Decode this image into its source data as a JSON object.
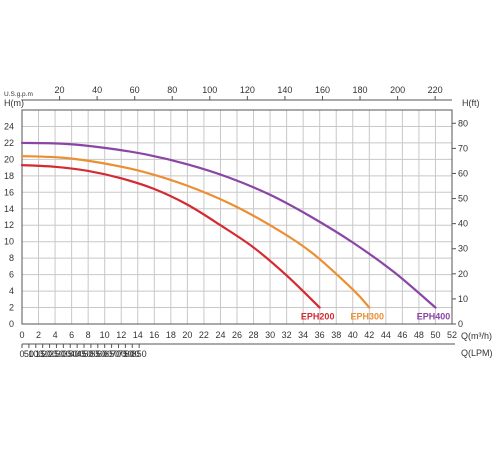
{
  "chart_data": {
    "type": "line",
    "axes": {
      "left": {
        "label": "H(m)",
        "ticks": [
          "0",
          "2",
          "4",
          "6",
          "8",
          "10",
          "12",
          "14",
          "16",
          "18",
          "20",
          "22",
          "24"
        ],
        "range": [
          0,
          26
        ]
      },
      "right": {
        "label": "H(ft)",
        "ticks": [
          "0",
          "10",
          "20",
          "30",
          "40",
          "50",
          "60",
          "70",
          "80"
        ],
        "range": [
          0,
          85.3
        ]
      },
      "bottom": {
        "label": "Q(m³/h)",
        "ticks": [
          "0",
          "2",
          "4",
          "6",
          "8",
          "10",
          "12",
          "14",
          "16",
          "18",
          "20",
          "22",
          "24",
          "26",
          "28",
          "30",
          "32",
          "34",
          "36",
          "38",
          "40",
          "42",
          "44",
          "46",
          "48",
          "50",
          "52"
        ],
        "range": [
          0,
          52
        ]
      },
      "bottom2": {
        "label": "Q(LPM)",
        "ticks": [
          "0",
          "50",
          "100",
          "150",
          "200",
          "250",
          "300",
          "350",
          "400",
          "450",
          "500",
          "550",
          "600",
          "650",
          "700",
          "750",
          "800",
          "850"
        ]
      },
      "top": {
        "label": "U.S.g.p.m",
        "ticks": [
          "20",
          "40",
          "60",
          "80",
          "100",
          "120",
          "140",
          "160",
          "180",
          "200",
          "220"
        ]
      }
    },
    "grid": true,
    "series": [
      {
        "name": "EPH200",
        "color": "#d42a32",
        "x": [
          0,
          4,
          8,
          12,
          16,
          20,
          24,
          28,
          32,
          36
        ],
        "y": [
          19.3,
          19.1,
          18.6,
          17.7,
          16.4,
          14.5,
          12.0,
          9.3,
          5.9,
          2.0
        ]
      },
      {
        "name": "EPH300",
        "color": "#ec8f33",
        "x": [
          0,
          5,
          10,
          15,
          20,
          25,
          30,
          35,
          40,
          42
        ],
        "y": [
          20.4,
          20.2,
          19.5,
          18.4,
          16.8,
          14.7,
          12.0,
          8.7,
          4.2,
          2.0
        ]
      },
      {
        "name": "EPH400",
        "color": "#8a45a6",
        "x": [
          0,
          5,
          10,
          15,
          20,
          25,
          30,
          35,
          40,
          45,
          50
        ],
        "y": [
          22.0,
          21.9,
          21.4,
          20.6,
          19.4,
          17.8,
          15.7,
          13.0,
          9.9,
          6.3,
          2.0
        ]
      }
    ]
  }
}
